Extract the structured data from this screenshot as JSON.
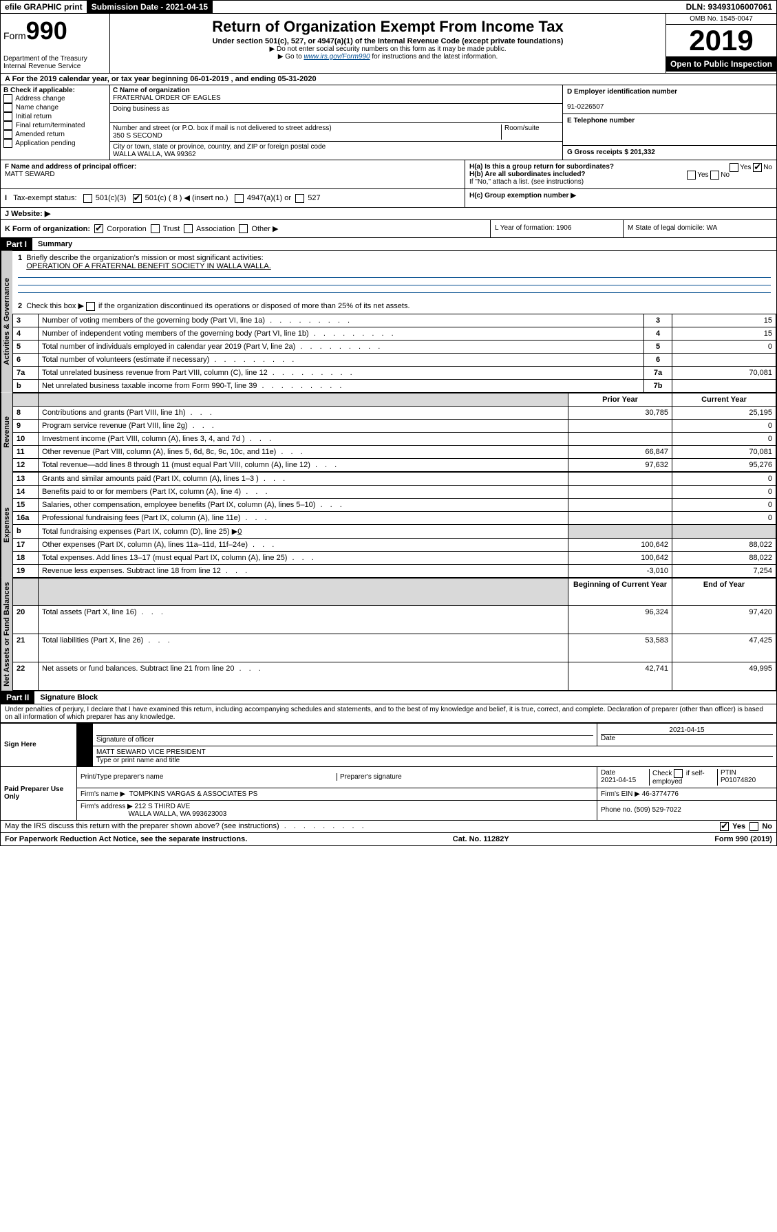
{
  "topbar": {
    "efile": "efile GRAPHIC print",
    "submission_label": "Submission Date - 2021-04-15",
    "dln": "DLN: 93493106007061"
  },
  "header": {
    "form_prefix": "Form",
    "form_number": "990",
    "dept1": "Department of the Treasury",
    "dept2": "Internal Revenue Service",
    "title": "Return of Organization Exempt From Income Tax",
    "subtitle": "Under section 501(c), 527, or 4947(a)(1) of the Internal Revenue Code (except private foundations)",
    "note1": "▶ Do not enter social security numbers on this form as it may be made public.",
    "note2_pre": "▶ Go to ",
    "note2_link": "www.irs.gov/Form990",
    "note2_post": " for instructions and the latest information.",
    "omb": "OMB No. 1545-0047",
    "year": "2019",
    "open": "Open to Public Inspection"
  },
  "section_a": {
    "text": "A For the 2019 calendar year, or tax year beginning 06-01-2019    , and ending 05-31-2020"
  },
  "box_b": {
    "label": "B Check if applicable:",
    "opt1": "Address change",
    "opt2": "Name change",
    "opt3": "Initial return",
    "opt4": "Final return/terminated",
    "opt5": "Amended return",
    "opt6": "Application pending"
  },
  "box_c": {
    "name_label": "C Name of organization",
    "name": "FRATERNAL ORDER OF EAGLES",
    "dba_label": "Doing business as",
    "addr_label": "Number and street (or P.O. box if mail is not delivered to street address)",
    "room_label": "Room/suite",
    "addr": "350 S SECOND",
    "city_label": "City or town, state or province, country, and ZIP or foreign postal code",
    "city": "WALLA WALLA, WA  99362"
  },
  "box_d": {
    "label": "D Employer identification number",
    "value": "91-0226507"
  },
  "box_e": {
    "label": "E Telephone number"
  },
  "box_g": {
    "label": "G Gross receipts $ 201,332"
  },
  "box_f": {
    "label": "F  Name and address of principal officer:",
    "name": "MATT SEWARD"
  },
  "box_h": {
    "ha": "H(a)  Is this a group return for subordinates?",
    "hb": "H(b)  Are all subordinates included?",
    "hb_note": "If \"No,\" attach a list. (see instructions)",
    "hc": "H(c)  Group exemption number ▶"
  },
  "box_i": {
    "label": "Tax-exempt status:",
    "opt1": "501(c)(3)",
    "opt2": "501(c) ( 8 ) ◀ (insert no.)",
    "opt3": "4947(a)(1) or",
    "opt4": "527"
  },
  "box_j": {
    "label": "J    Website: ▶"
  },
  "box_k": {
    "label": "K Form of organization:",
    "opt1": "Corporation",
    "opt2": "Trust",
    "opt3": "Association",
    "opt4": "Other ▶"
  },
  "box_l": {
    "label": "L Year of formation: 1906"
  },
  "box_m": {
    "label": "M State of legal domicile: WA"
  },
  "part1": {
    "header": "Part I",
    "title": "Summary",
    "q1": "Briefly describe the organization's mission or most significant activities:",
    "q1_ans": "OPERATION OF A FRATERNAL BENEFIT SOCIETY IN WALLA WALLA.",
    "q2": "Check this box ▶",
    "q2b": "if the organization discontinued its operations or disposed of more than 25% of its net assets.",
    "rows_top": [
      {
        "n": "3",
        "label": "Number of voting members of the governing body (Part VI, line 1a)",
        "rn": "3",
        "val": "15"
      },
      {
        "n": "4",
        "label": "Number of independent voting members of the governing body (Part VI, line 1b)",
        "rn": "4",
        "val": "15"
      },
      {
        "n": "5",
        "label": "Total number of individuals employed in calendar year 2019 (Part V, line 2a)",
        "rn": "5",
        "val": "0"
      },
      {
        "n": "6",
        "label": "Total number of volunteers (estimate if necessary)",
        "rn": "6",
        "val": ""
      },
      {
        "n": "7a",
        "label": "Total unrelated business revenue from Part VIII, column (C), line 12",
        "rn": "7a",
        "val": "70,081"
      },
      {
        "n": " b",
        "label": "Net unrelated business taxable income from Form 990-T, line 39",
        "rn": "7b",
        "val": ""
      }
    ],
    "col_prior": "Prior Year",
    "col_current": "Current Year",
    "col_begin": "Beginning of Current Year",
    "col_end": "End of Year",
    "revenue": [
      {
        "n": "8",
        "label": "Contributions and grants (Part VIII, line 1h)",
        "prior": "30,785",
        "curr": "25,195"
      },
      {
        "n": "9",
        "label": "Program service revenue (Part VIII, line 2g)",
        "prior": "",
        "curr": "0"
      },
      {
        "n": "10",
        "label": "Investment income (Part VIII, column (A), lines 3, 4, and 7d )",
        "prior": "",
        "curr": "0"
      },
      {
        "n": "11",
        "label": "Other revenue (Part VIII, column (A), lines 5, 6d, 8c, 9c, 10c, and 11e)",
        "prior": "66,847",
        "curr": "70,081"
      },
      {
        "n": "12",
        "label": "Total revenue—add lines 8 through 11 (must equal Part VIII, column (A), line 12)",
        "prior": "97,632",
        "curr": "95,276"
      }
    ],
    "expenses": [
      {
        "n": "13",
        "label": "Grants and similar amounts paid (Part IX, column (A), lines 1–3 )",
        "prior": "",
        "curr": "0"
      },
      {
        "n": "14",
        "label": "Benefits paid to or for members (Part IX, column (A), line 4)",
        "prior": "",
        "curr": "0"
      },
      {
        "n": "15",
        "label": "Salaries, other compensation, employee benefits (Part IX, column (A), lines 5–10)",
        "prior": "",
        "curr": "0"
      },
      {
        "n": "16a",
        "label": "Professional fundraising fees (Part IX, column (A), line 11e)",
        "prior": "",
        "curr": "0"
      }
    ],
    "exp16b_label": "Total fundraising expenses (Part IX, column (D), line 25) ▶",
    "exp16b_val": "0",
    "expenses2": [
      {
        "n": "17",
        "label": "Other expenses (Part IX, column (A), lines 11a–11d, 11f–24e)",
        "prior": "100,642",
        "curr": "88,022"
      },
      {
        "n": "18",
        "label": "Total expenses. Add lines 13–17 (must equal Part IX, column (A), line 25)",
        "prior": "100,642",
        "curr": "88,022"
      },
      {
        "n": "19",
        "label": "Revenue less expenses. Subtract line 18 from line 12",
        "prior": "-3,010",
        "curr": "7,254"
      }
    ],
    "netassets": [
      {
        "n": "20",
        "label": "Total assets (Part X, line 16)",
        "prior": "96,324",
        "curr": "97,420"
      },
      {
        "n": "21",
        "label": "Total liabilities (Part X, line 26)",
        "prior": "53,583",
        "curr": "47,425"
      },
      {
        "n": "22",
        "label": "Net assets or fund balances. Subtract line 21 from line 20",
        "prior": "42,741",
        "curr": "49,995"
      }
    ],
    "side_gov": "Activities & Governance",
    "side_rev": "Revenue",
    "side_exp": "Expenses",
    "side_net": "Net Assets or Fund Balances"
  },
  "part2": {
    "header": "Part II",
    "title": "Signature Block",
    "declaration": "Under penalties of perjury, I declare that I have examined this return, including accompanying schedules and statements, and to the best of my knowledge and belief, it is true, correct, and complete. Declaration of preparer (other than officer) is based on all information of which preparer has any knowledge.",
    "sign_here": "Sign Here",
    "sig_officer": "Signature of officer",
    "sig_date": "2021-04-15",
    "date_label": "Date",
    "printed": "MATT SEWARD  VICE PRESIDENT",
    "printed_label": "Type or print name and title",
    "paid": "Paid Preparer Use Only",
    "prep_name_label": "Print/Type preparer's name",
    "prep_sig_label": "Preparer's signature",
    "prep_date_label": "Date",
    "prep_date": "2021-04-15",
    "check_label": "Check",
    "check_if": "if self-employed",
    "ptin_label": "PTIN",
    "ptin": "P01074820",
    "firm_name_label": "Firm's name     ▶",
    "firm_name": "TOMPKINS VARGAS & ASSOCIATES PS",
    "firm_ein_label": "Firm's EIN ▶",
    "firm_ein": "46-3774776",
    "firm_addr_label": "Firm's address ▶",
    "firm_addr1": "212 S THIRD AVE",
    "firm_addr2": "WALLA WALLA, WA  993623003",
    "phone_label": "Phone no. (509) 529-7022",
    "discuss": "May the IRS discuss this return with the preparer shown above? (see instructions)"
  },
  "footer": {
    "left": "For Paperwork Reduction Act Notice, see the separate instructions.",
    "mid": "Cat. No. 11282Y",
    "right": "Form 990 (2019)"
  },
  "yes": "Yes",
  "no": "No"
}
